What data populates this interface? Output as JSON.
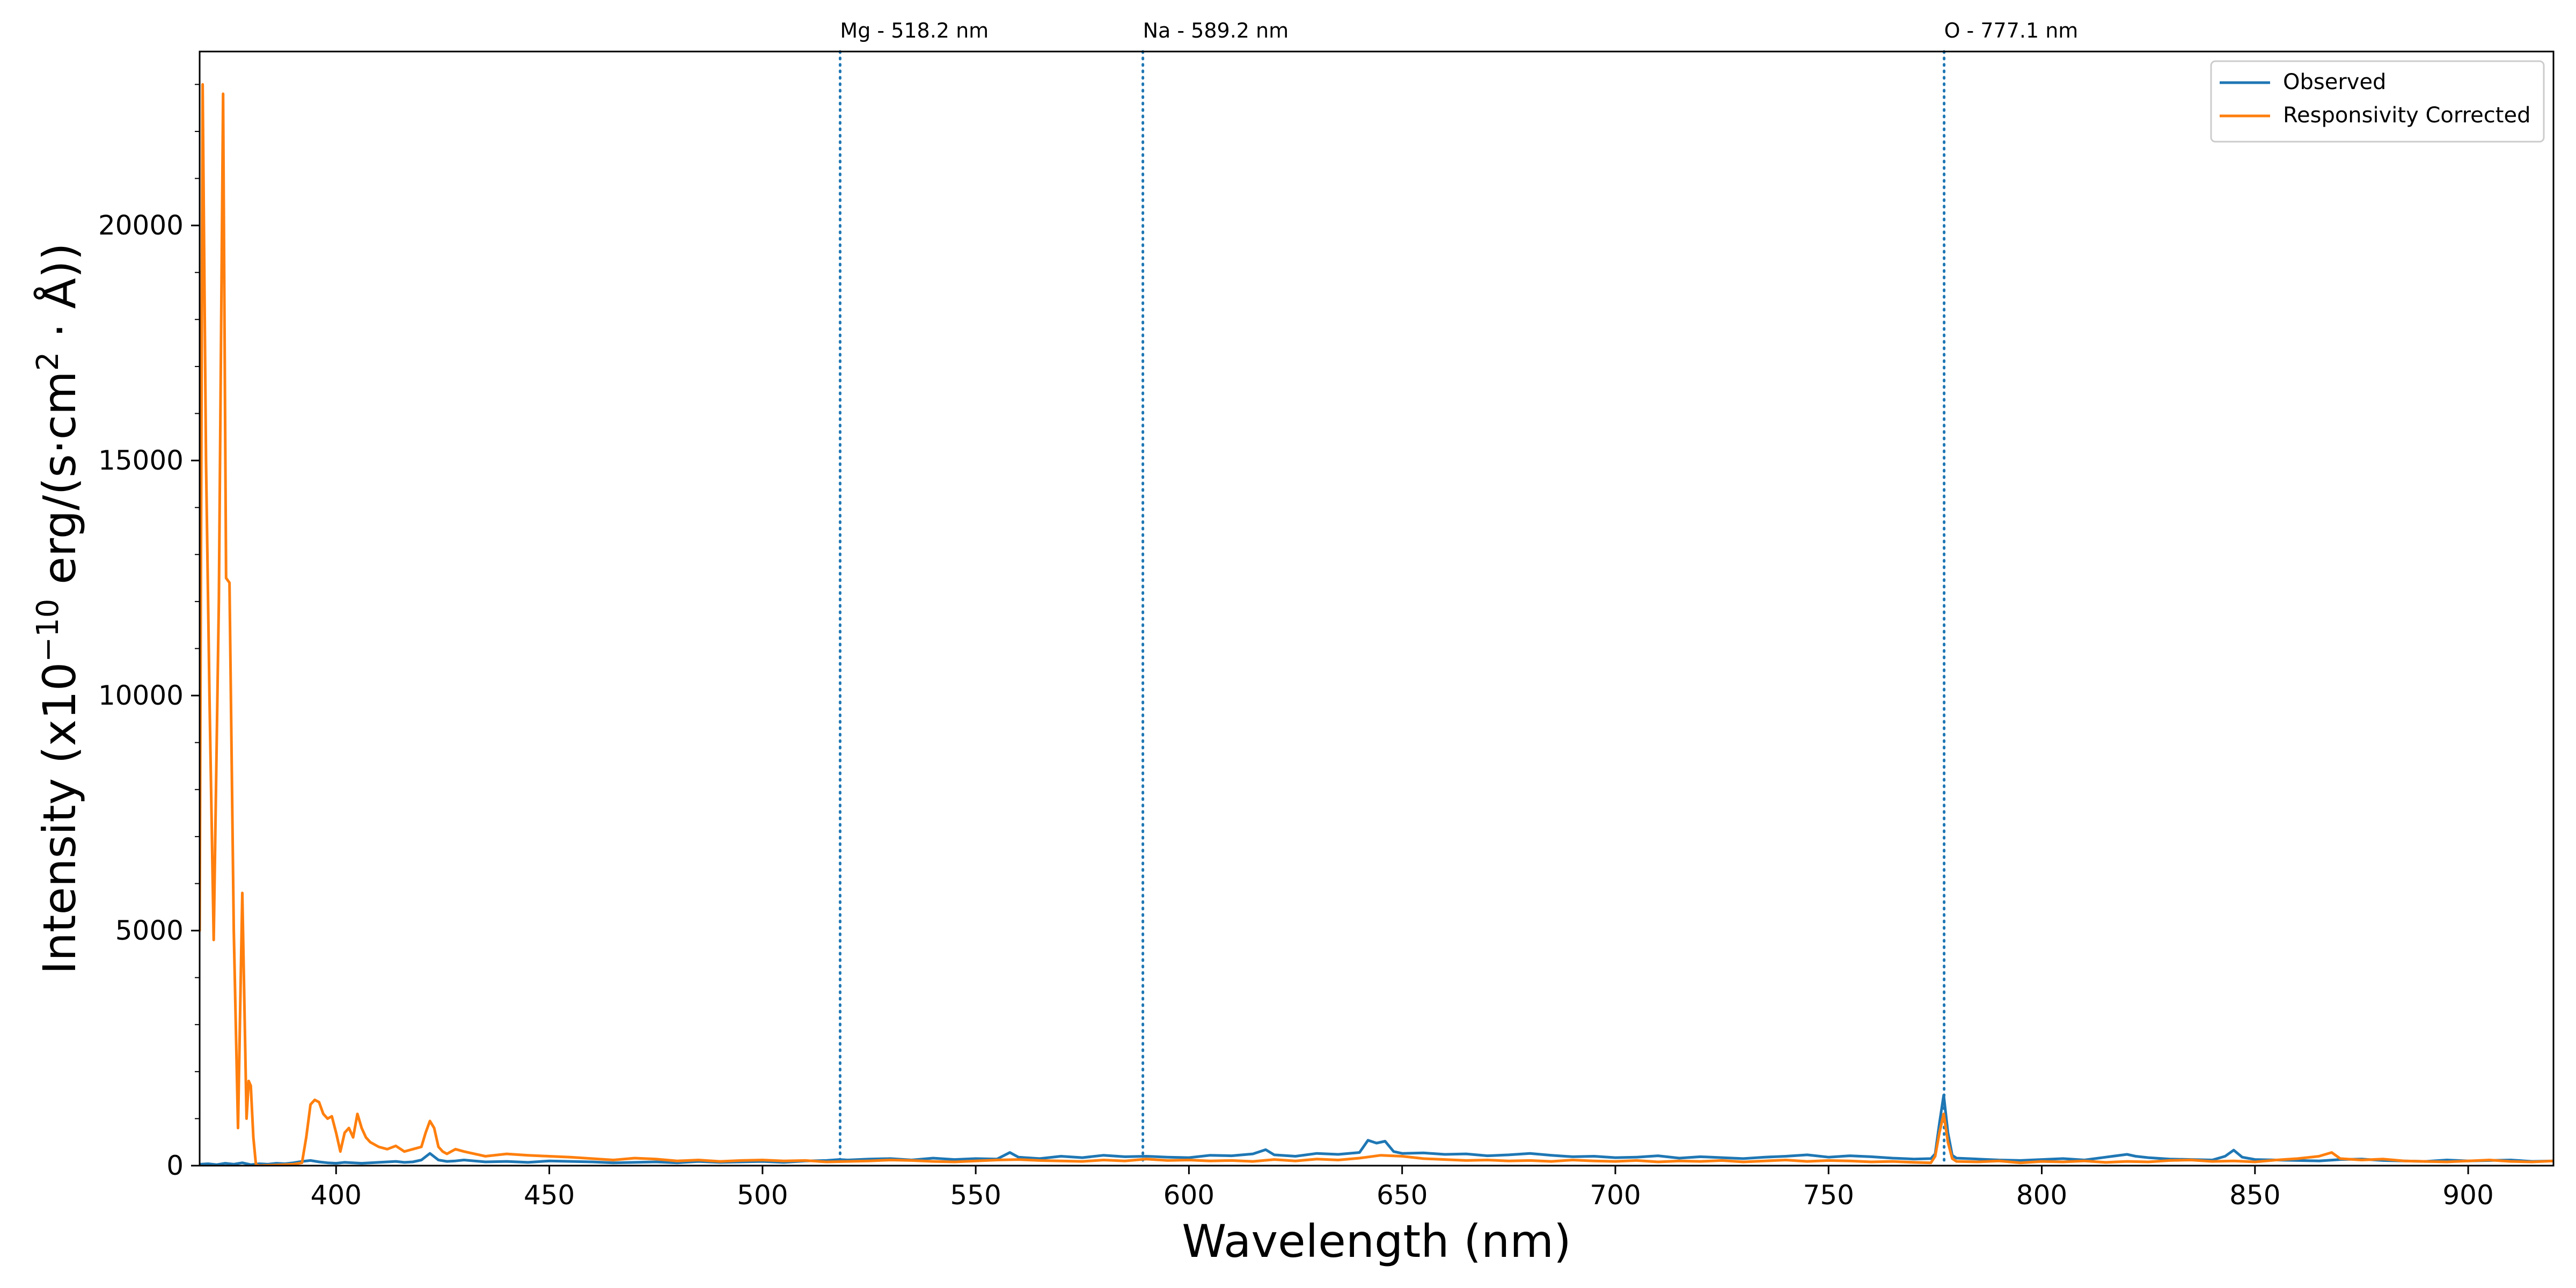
{
  "chart_data": {
    "type": "line",
    "title": "",
    "xlabel": "Wavelength (nm)",
    "ylabel_parts": {
      "prefix": "Intensity (x10",
      "exp1": "−10",
      "middle": " erg/(s·cm",
      "exp2": "2",
      "suffix": " · Å))"
    },
    "xlim": [
      368,
      920
    ],
    "ylim": [
      0,
      23700
    ],
    "x_ticks": [
      400,
      450,
      500,
      550,
      600,
      650,
      700,
      750,
      800,
      850,
      900
    ],
    "y_ticks": [
      0,
      5000,
      10000,
      15000,
      20000
    ],
    "y_minor_step": 1000,
    "grid": false,
    "legend_position": "top-right",
    "reference_lines": [
      {
        "x": 518.2,
        "label": "Mg - 518.2 nm",
        "color": "#1f77b4"
      },
      {
        "x": 589.2,
        "label": "Na - 589.2 nm",
        "color": "#1f77b4"
      },
      {
        "x": 777.1,
        "label": "O - 777.1 nm",
        "color": "#1f77b4"
      }
    ],
    "series": [
      {
        "name": "Observed",
        "color": "#1f77b4",
        "x": [
          368,
          370,
          372,
          374,
          376,
          378,
          380,
          382,
          384,
          386,
          388,
          390,
          392,
          394,
          396,
          398,
          400,
          402,
          404,
          406,
          408,
          410,
          412,
          414,
          416,
          418,
          420,
          422,
          424,
          426,
          428,
          430,
          435,
          440,
          445,
          450,
          455,
          460,
          465,
          470,
          475,
          480,
          485,
          490,
          495,
          500,
          505,
          510,
          515,
          518,
          520,
          525,
          530,
          535,
          540,
          545,
          550,
          555,
          558,
          560,
          565,
          570,
          575,
          580,
          585,
          590,
          595,
          600,
          605,
          610,
          615,
          618,
          620,
          625,
          630,
          635,
          640,
          642,
          644,
          646,
          648,
          650,
          655,
          660,
          665,
          670,
          675,
          680,
          685,
          690,
          695,
          700,
          705,
          710,
          715,
          720,
          725,
          730,
          735,
          740,
          745,
          750,
          755,
          760,
          765,
          770,
          774,
          775,
          776,
          777,
          778,
          779,
          780,
          785,
          790,
          795,
          800,
          805,
          810,
          815,
          820,
          822,
          825,
          830,
          835,
          840,
          843,
          845,
          847,
          850,
          855,
          860,
          865,
          870,
          875,
          880,
          885,
          890,
          895,
          900,
          905,
          910,
          915,
          920
        ],
        "y": [
          30,
          40,
          20,
          50,
          30,
          60,
          20,
          40,
          30,
          50,
          40,
          60,
          90,
          110,
          80,
          60,
          50,
          70,
          60,
          50,
          60,
          70,
          80,
          90,
          70,
          80,
          120,
          260,
          120,
          90,
          100,
          120,
          80,
          90,
          70,
          100,
          90,
          80,
          60,
          70,
          80,
          60,
          90,
          70,
          80,
          90,
          70,
          100,
          110,
          130,
          120,
          140,
          150,
          120,
          160,
          130,
          150,
          140,
          280,
          180,
          150,
          200,
          170,
          220,
          190,
          200,
          180,
          170,
          220,
          210,
          250,
          340,
          230,
          200,
          260,
          240,
          280,
          540,
          480,
          520,
          300,
          260,
          270,
          240,
          250,
          210,
          230,
          260,
          220,
          190,
          200,
          170,
          180,
          210,
          160,
          190,
          170,
          150,
          180,
          200,
          230,
          180,
          210,
          190,
          160,
          140,
          150,
          250,
          900,
          1500,
          700,
          220,
          160,
          140,
          120,
          110,
          130,
          150,
          120,
          180,
          240,
          200,
          170,
          140,
          130,
          120,
          200,
          330,
          180,
          130,
          120,
          110,
          100,
          130,
          140,
          110,
          100,
          90,
          120,
          100,
          110,
          120,
          90,
          100
        ]
      },
      {
        "name": "Responsivity Corrected",
        "color": "#ff7f0e",
        "x": [
          368,
          368.7,
          369.5,
          370.3,
          371.3,
          372.5,
          373.5,
          374.2,
          375.0,
          376.0,
          377.0,
          378.0,
          379.0,
          379.5,
          380.0,
          380.6,
          381.2,
          382,
          385,
          388,
          390,
          392,
          393,
          394,
          395,
          396,
          397,
          398,
          399,
          400,
          401,
          402,
          403,
          404,
          405,
          406,
          407,
          408,
          410,
          412,
          414,
          416,
          418,
          420,
          421,
          422,
          423,
          424,
          425,
          426,
          428,
          430,
          435,
          440,
          445,
          450,
          455,
          460,
          465,
          470,
          475,
          480,
          485,
          490,
          495,
          500,
          505,
          510,
          515,
          520,
          525,
          530,
          535,
          540,
          545,
          550,
          555,
          560,
          565,
          570,
          575,
          580,
          585,
          590,
          595,
          600,
          605,
          610,
          615,
          620,
          625,
          630,
          635,
          640,
          645,
          650,
          655,
          660,
          665,
          670,
          675,
          680,
          685,
          690,
          695,
          700,
          705,
          710,
          715,
          720,
          725,
          730,
          735,
          740,
          745,
          750,
          755,
          760,
          765,
          770,
          774,
          775,
          776,
          777,
          778,
          779,
          780,
          785,
          790,
          795,
          800,
          805,
          810,
          815,
          820,
          825,
          830,
          835,
          840,
          845,
          850,
          855,
          860,
          865,
          868,
          870,
          875,
          880,
          885,
          890,
          895,
          900,
          905,
          910,
          915,
          920
        ],
        "y": [
          5000,
          23000,
          15000,
          10000,
          4800,
          12000,
          22800,
          12500,
          12400,
          5000,
          800,
          5800,
          1000,
          1800,
          1700,
          600,
          20,
          0,
          10,
          20,
          30,
          60,
          600,
          1300,
          1400,
          1350,
          1100,
          1000,
          1050,
          700,
          300,
          700,
          800,
          600,
          1100,
          800,
          600,
          500,
          400,
          350,
          420,
          300,
          350,
          400,
          700,
          950,
          800,
          400,
          300,
          250,
          350,
          300,
          200,
          250,
          220,
          200,
          180,
          150,
          120,
          160,
          140,
          100,
          120,
          90,
          110,
          120,
          100,
          110,
          80,
          90,
          100,
          120,
          110,
          90,
          80,
          100,
          120,
          130,
          110,
          100,
          90,
          120,
          100,
          140,
          110,
          120,
          100,
          110,
          90,
          130,
          100,
          140,
          120,
          160,
          220,
          200,
          150,
          130,
          110,
          120,
          100,
          110,
          90,
          120,
          100,
          90,
          110,
          80,
          100,
          90,
          110,
          80,
          100,
          120,
          90,
          110,
          100,
          80,
          90,
          70,
          60,
          200,
          700,
          1100,
          500,
          150,
          90,
          80,
          100,
          60,
          90,
          80,
          100,
          70,
          90,
          80,
          110,
          120,
          90,
          100,
          80,
          120,
          150,
          200,
          280,
          150,
          120,
          140,
          100,
          90,
          80,
          100,
          120,
          90,
          80,
          100
        ]
      }
    ]
  }
}
